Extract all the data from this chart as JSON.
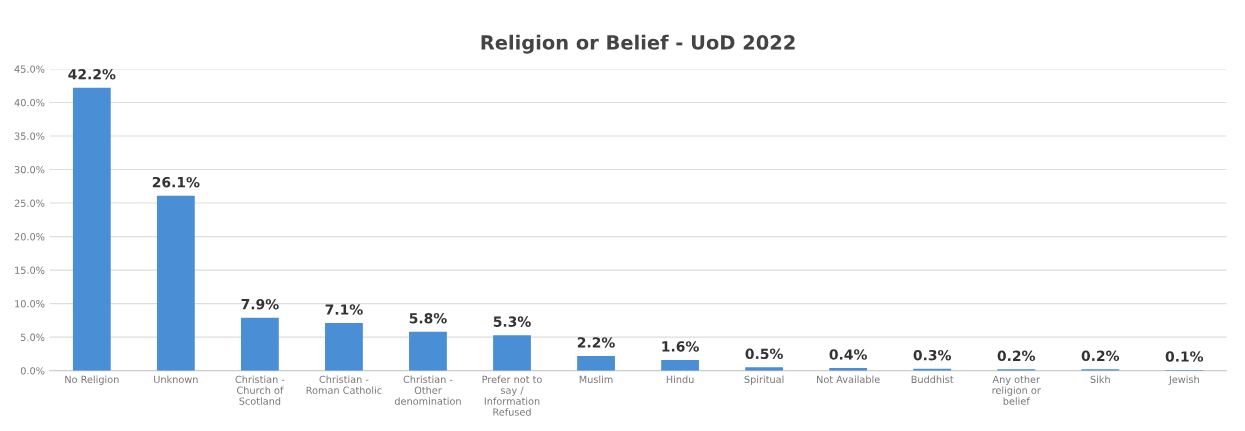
{
  "chart_data": {
    "type": "bar",
    "title": "Religion or Belief - UoD 2022",
    "categories": [
      "No Religion",
      "Unknown",
      "Christian - Church of Scotland",
      "Christian - Roman Catholic",
      "Christian - Other denomination",
      "Prefer not to say / Information Refused",
      "Muslim",
      "Hindu",
      "Spiritual",
      "Not Available",
      "Buddhist",
      "Any other religion or belief",
      "Sikh",
      "Jewish"
    ],
    "values": [
      42.2,
      26.1,
      7.9,
      7.1,
      5.8,
      5.3,
      2.2,
      1.6,
      0.5,
      0.4,
      0.3,
      0.2,
      0.2,
      0.1
    ],
    "value_labels": [
      "42.2%",
      "26.1%",
      "7.9%",
      "7.1%",
      "5.8%",
      "5.3%",
      "2.2%",
      "1.6%",
      "0.5%",
      "0.4%",
      "0.3%",
      "0.2%",
      "0.2%",
      "0.1%"
    ],
    "color": "#4a8fd6",
    "ylim": [
      0,
      45
    ],
    "yticks": [
      {
        "value": 0,
        "label": "0.0%"
      },
      {
        "value": 5,
        "label": "5.0%"
      },
      {
        "value": 10,
        "label": "10.0%"
      },
      {
        "value": 15,
        "label": "15.0%"
      },
      {
        "value": 20,
        "label": "20.0%"
      },
      {
        "value": 25,
        "label": "25.0%"
      },
      {
        "value": 30,
        "label": "30.0%"
      },
      {
        "value": 35,
        "label": "35.0%"
      },
      {
        "value": 40,
        "label": "40.0%"
      },
      {
        "value": 45,
        "label": "45.0%"
      }
    ],
    "grid": "y"
  }
}
